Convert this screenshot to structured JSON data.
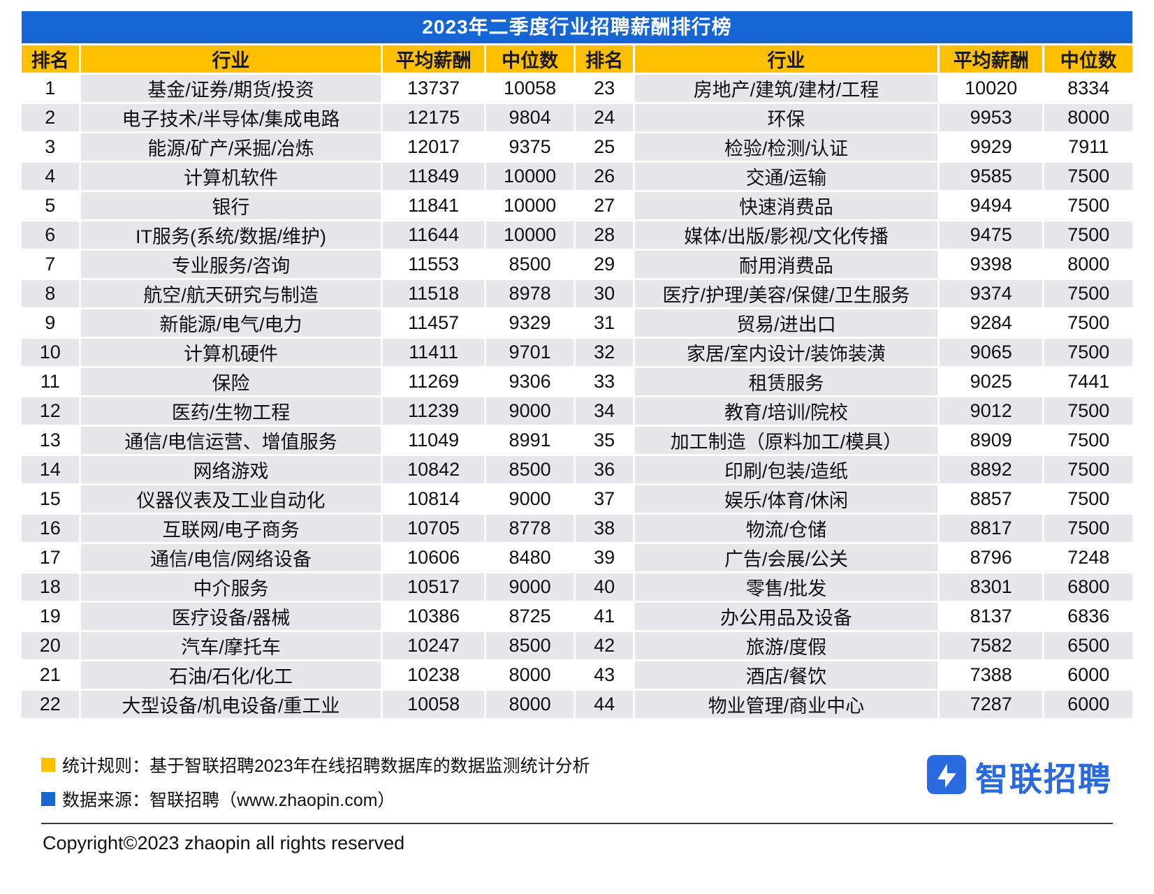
{
  "chart_data": {
    "type": "table",
    "title": "2023年二季度行业招聘薪酬排行榜",
    "columns": [
      "排名",
      "行业",
      "平均薪酬",
      "中位数"
    ],
    "rows_per_column": 22,
    "layout": "split into two side-by-side halves: ranks 1-22 left, ranks 23-44 right",
    "rows": [
      [
        1,
        "基金/证券/期货/投资",
        13737,
        10058
      ],
      [
        2,
        "电子技术/半导体/集成电路",
        12175,
        9804
      ],
      [
        3,
        "能源/矿产/采掘/冶炼",
        12017,
        9375
      ],
      [
        4,
        "计算机软件",
        11849,
        10000
      ],
      [
        5,
        "银行",
        11841,
        10000
      ],
      [
        6,
        "IT服务(系统/数据/维护)",
        11644,
        10000
      ],
      [
        7,
        "专业服务/咨询",
        11553,
        8500
      ],
      [
        8,
        "航空/航天研究与制造",
        11518,
        8978
      ],
      [
        9,
        "新能源/电气/电力",
        11457,
        9329
      ],
      [
        10,
        "计算机硬件",
        11411,
        9701
      ],
      [
        11,
        "保险",
        11269,
        9306
      ],
      [
        12,
        "医药/生物工程",
        11239,
        9000
      ],
      [
        13,
        "通信/电信运营、增值服务",
        11049,
        8991
      ],
      [
        14,
        "网络游戏",
        10842,
        8500
      ],
      [
        15,
        "仪器仪表及工业自动化",
        10814,
        9000
      ],
      [
        16,
        "互联网/电子商务",
        10705,
        8778
      ],
      [
        17,
        "通信/电信/网络设备",
        10606,
        8480
      ],
      [
        18,
        "中介服务",
        10517,
        9000
      ],
      [
        19,
        "医疗设备/器械",
        10386,
        8725
      ],
      [
        20,
        "汽车/摩托车",
        10247,
        8500
      ],
      [
        21,
        "石油/石化/化工",
        10238,
        8000
      ],
      [
        22,
        "大型设备/机电设备/重工业",
        10058,
        8000
      ],
      [
        23,
        "房地产/建筑/建材/工程",
        10020,
        8334
      ],
      [
        24,
        "环保",
        9953,
        8000
      ],
      [
        25,
        "检验/检测/认证",
        9929,
        7911
      ],
      [
        26,
        "交通/运输",
        9585,
        7500
      ],
      [
        27,
        "快速消费品",
        9494,
        7500
      ],
      [
        28,
        "媒体/出版/影视/文化传播",
        9475,
        7500
      ],
      [
        29,
        "耐用消费品",
        9398,
        8000
      ],
      [
        30,
        "医疗/护理/美容/保健/卫生服务",
        9374,
        7500
      ],
      [
        31,
        "贸易/进出口",
        9284,
        7500
      ],
      [
        32,
        "家居/室内设计/装饰装潢",
        9065,
        7500
      ],
      [
        33,
        "租赁服务",
        9025,
        7441
      ],
      [
        34,
        "教育/培训/院校",
        9012,
        7500
      ],
      [
        35,
        "加工制造（原料加工/模具）",
        8909,
        7500
      ],
      [
        36,
        "印刷/包装/造纸",
        8892,
        7500
      ],
      [
        37,
        "娱乐/体育/休闲",
        8857,
        7500
      ],
      [
        38,
        "物流/仓储",
        8817,
        7500
      ],
      [
        39,
        "广告/会展/公关",
        8796,
        7248
      ],
      [
        40,
        "零售/批发",
        8301,
        6800
      ],
      [
        41,
        "办公用品及设备",
        8137,
        6836
      ],
      [
        42,
        "旅游/度假",
        7582,
        6500
      ],
      [
        43,
        "酒店/餐饮",
        7388,
        6000
      ],
      [
        44,
        "物业管理/商业中心",
        7287,
        6000
      ]
    ]
  },
  "footer": {
    "stat_rule": "统计规则：基于智联招聘2023年在线招聘数据库的数据监测统计分析",
    "data_source": "数据来源：智联招聘（www.zhaopin.com）",
    "copyright": "Copyright©2023 zhaopin all rights reserved",
    "logo_text": "智联招聘"
  },
  "colors": {
    "title_bar_bg": "#1566D4",
    "title_bar_text": "#FFFFFF",
    "header_bg": "#FFC000",
    "stripe_bg": "#E7E6EA",
    "logo_blue": "#2A6ADF"
  }
}
